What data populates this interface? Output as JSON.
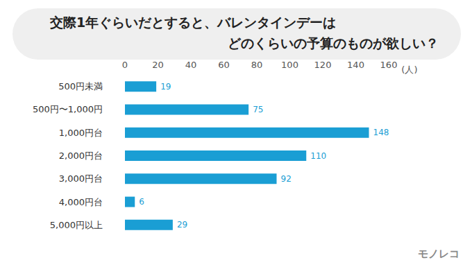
{
  "chart_data": {
    "type": "bar",
    "title": "交際1年ぐらいだとすると、バレンタインデーは\nどのくらいの予算のものが欲しい？",
    "categories": [
      "500円未満",
      "500円〜1,000円",
      "1,000円台",
      "2,000円台",
      "3,000円台",
      "4,000円台",
      "5,000円以上"
    ],
    "values": [
      19,
      75,
      148,
      110,
      92,
      6,
      29
    ],
    "color": "#1a9ed4",
    "orientation": "horizontal",
    "xlabel": "(人)",
    "xlim": [
      0,
      160
    ],
    "xticks": [
      0,
      20,
      40,
      60,
      80,
      100,
      120,
      140,
      160
    ],
    "grid": false,
    "data_labels": true,
    "annotations": [
      {
        "text": "モノレコ"
      }
    ]
  }
}
